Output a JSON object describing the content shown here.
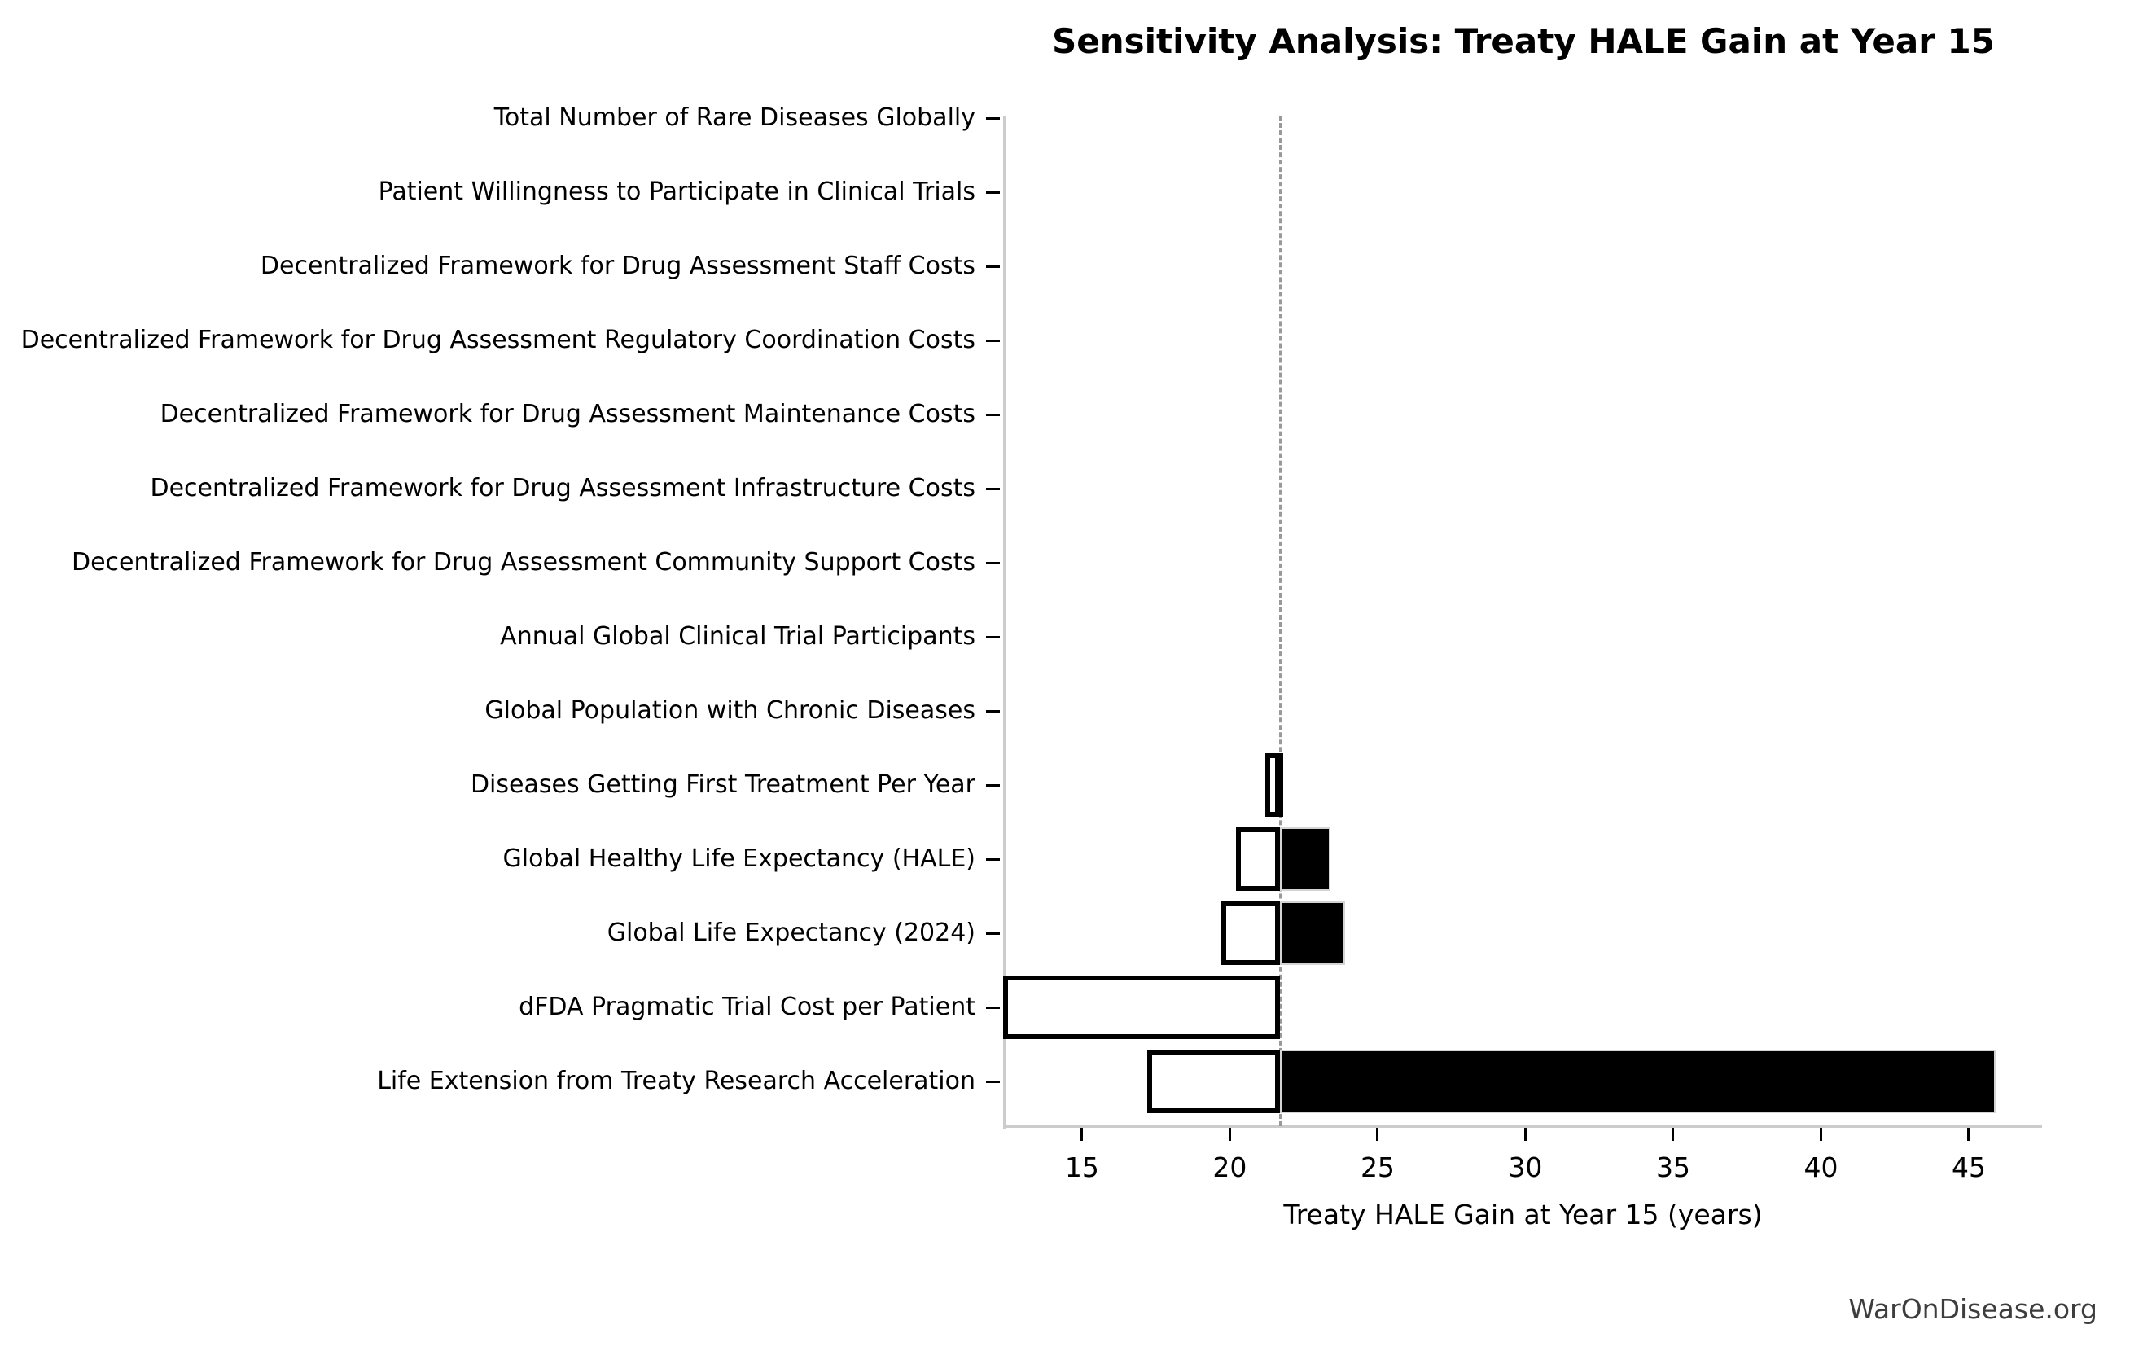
{
  "title": "Sensitivity Analysis: Treaty HALE Gain at Year 15",
  "watermark": {
    "text": "WarOnDisease.org"
  },
  "chart_data": {
    "type": "bar",
    "subtype": "tornado-sensitivity",
    "orientation": "horizontal",
    "title": "Sensitivity Analysis: Treaty HALE Gain at Year 15",
    "xlabel": "Treaty HALE Gain at Year 15 (years)",
    "ylabel": "",
    "baseline": 21.7,
    "xlim": [
      12.33,
      47.48
    ],
    "xticks": [
      15,
      20,
      25,
      30,
      35,
      40,
      45
    ],
    "grid": false,
    "legend": "none",
    "colors": {
      "low_bar_fill": "#ffffff",
      "low_bar_edge": "#000000",
      "high_bar_fill": "#000000",
      "high_bar_edge": "#d4d4d4",
      "baseline_line": "#999999",
      "spine": "#cccccc",
      "text": "#000000",
      "watermark_text": "#3d3d3d"
    },
    "categories": [
      "Total Number of Rare Diseases Globally",
      "Patient Willingness to Participate in Clinical Trials",
      "Decentralized Framework for Drug Assessment Staff Costs",
      "Decentralized Framework for Drug Assessment Regulatory Coordination Costs",
      "Decentralized Framework for Drug Assessment Maintenance Costs",
      "Decentralized Framework for Drug Assessment Infrastructure Costs",
      "Decentralized Framework for Drug Assessment Community Support Costs",
      "Annual Global Clinical Trial Participants",
      "Global Population with Chronic Diseases",
      "Diseases Getting First Treatment Per Year",
      "Global Healthy Life Expectancy (HALE)",
      "Global Life Expectancy (2024)",
      "dFDA Pragmatic Trial Cost per Patient",
      "Life Extension from Treaty Research Acceleration"
    ],
    "series": [
      {
        "name": "Low-estimate outcome (years)",
        "values": [
          21.7,
          21.7,
          21.7,
          21.7,
          21.7,
          21.7,
          21.7,
          21.7,
          21.7,
          21.2,
          20.2,
          19.7,
          12.3,
          17.2
        ]
      },
      {
        "name": "High-estimate outcome (years)",
        "values": [
          21.7,
          21.7,
          21.7,
          21.7,
          21.7,
          21.7,
          21.7,
          21.7,
          21.7,
          21.8,
          23.4,
          23.9,
          21.7,
          45.9
        ]
      }
    ]
  }
}
